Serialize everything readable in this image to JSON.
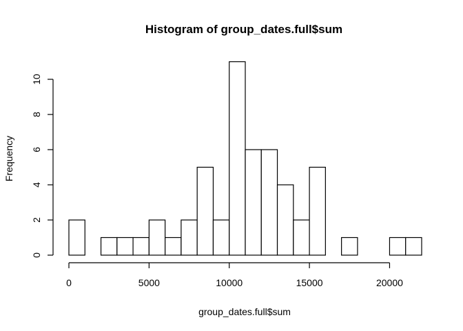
{
  "chart_data": {
    "type": "bar",
    "subtype": "histogram",
    "title": "Histogram of group_dates.full$sum",
    "xlabel": "group_dates.full$sum",
    "ylabel": "Frequency",
    "bin_width": 1000,
    "bin_start": 0,
    "values": [
      2,
      0,
      1,
      1,
      1,
      2,
      1,
      2,
      5,
      2,
      11,
      6,
      6,
      4,
      2,
      5,
      0,
      1,
      0,
      0,
      1,
      1
    ],
    "xlim": [
      0,
      22000
    ],
    "ylim": [
      0,
      11
    ],
    "x_ticks": [
      0,
      5000,
      10000,
      15000,
      20000
    ],
    "y_ticks": [
      0,
      2,
      4,
      6,
      8,
      10
    ],
    "grid": false,
    "legend": "none",
    "bar_fill": "#ffffff",
    "bar_stroke": "#000000"
  }
}
